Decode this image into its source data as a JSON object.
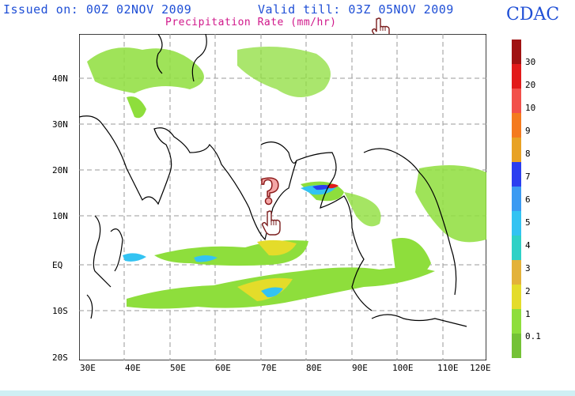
{
  "header": {
    "issued": "Issued on: 00Z 02NOV 2009",
    "valid": "Valid till: 03Z 05NOV 2009",
    "subtitle": "Precipitation Rate (mm/hr)",
    "logo": "CDAC"
  },
  "map": {
    "lat_labels": [
      "40N",
      "30N",
      "20N",
      "10N",
      "EQ",
      "10S",
      "20S"
    ],
    "lon_labels": [
      "30E",
      "40E",
      "50E",
      "60E",
      "70E",
      "80E",
      "90E",
      "100E",
      "110E",
      "120E"
    ]
  },
  "legend": {
    "labels": [
      "30",
      "20",
      "10",
      "9",
      "8",
      "7",
      "6",
      "5",
      "4",
      "3",
      "2",
      "1",
      "0.1"
    ],
    "colors": [
      "#a01212",
      "#e21a1a",
      "#f2504a",
      "#f47a1e",
      "#e8a224",
      "#2b3ef0",
      "#3b9af2",
      "#33c3f2",
      "#2fd1c6",
      "#e3b23a",
      "#e4dc2a",
      "#8ede3c",
      "#74c236"
    ]
  },
  "icons": [
    "hand-pointer-icon",
    "question-mark-icon"
  ],
  "colors": {
    "header_text": "#1f4fd6",
    "subtitle_text": "#d0178a",
    "coastline": "#000000",
    "grid": "#9a9a9a"
  }
}
